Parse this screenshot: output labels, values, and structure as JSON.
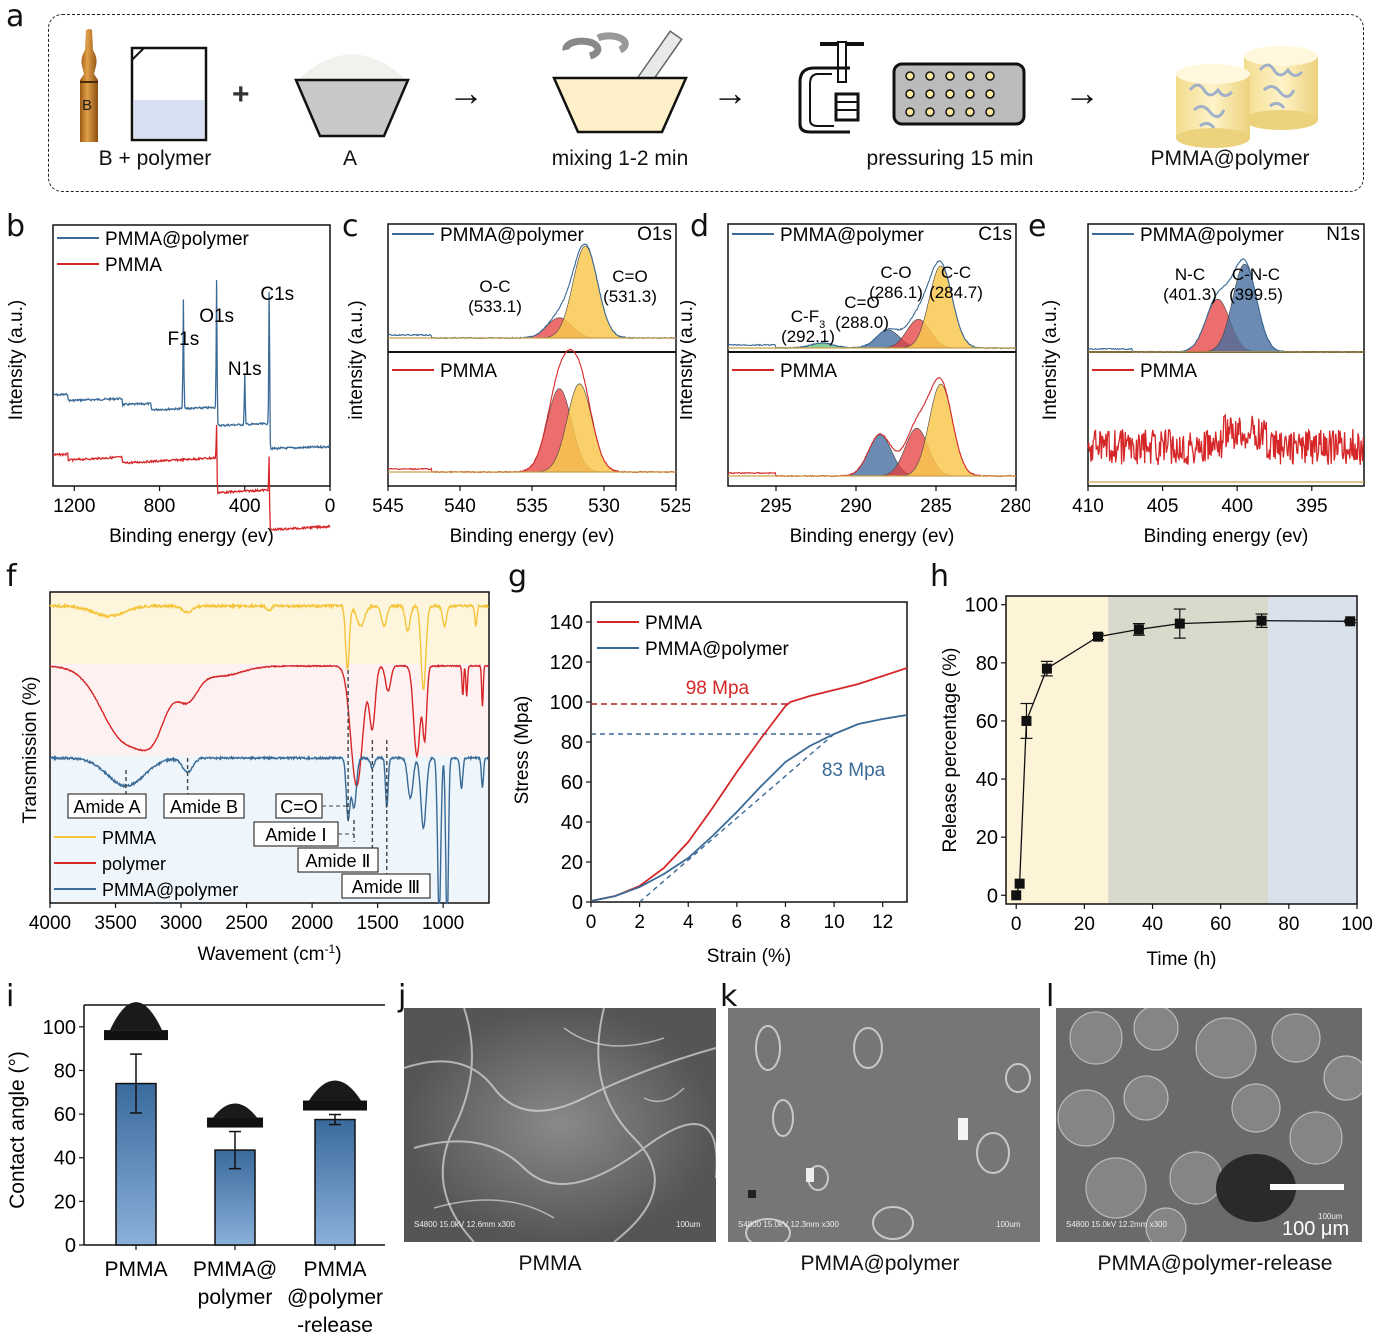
{
  "panel_labels": [
    "a",
    "b",
    "c",
    "d",
    "e",
    "f",
    "g",
    "h",
    "i",
    "j",
    "k",
    "l"
  ],
  "scheme": {
    "steps": [
      {
        "label": "B + polymer",
        "icon": "ampoule-and-beaker-icon",
        "ampoule_letter": "B"
      },
      {
        "label": "A",
        "icon": "powder-bowl-icon"
      },
      {
        "label": "mixing 1-2 min",
        "icon": "mortar-pestle-icon"
      },
      {
        "label": "pressuring 15 min",
        "icon": "clamp-and-mold-icon"
      },
      {
        "label": "PMMA@polymer",
        "icon": "cylinder-samples-icon"
      }
    ],
    "plus": "+",
    "arrow": "→"
  },
  "colors": {
    "red": "#d62728",
    "blue": "#3a6a96",
    "yellow": "#f5c43a",
    "orange": "#f39b2a",
    "green": "#6cc18a",
    "pale_yellow": "#fdf6dc",
    "pale_red": "#fdf1f1",
    "pale_blue": "#eef5fb",
    "band_yellow": "#fdf3d7",
    "band_gray": "#d9d9cc",
    "band_blue": "#d9e1ec",
    "bar_top": "#3a6a9c",
    "bar_bottom": "#8ab0da"
  },
  "chart_data": [
    {
      "id": "b",
      "type": "line",
      "title": "",
      "xlabel": "Binding energy (ev)",
      "ylabel": "Intensity (a.u.)",
      "xlim": [
        1300,
        0
      ],
      "xticks": [
        "1200",
        "800",
        "400",
        "0"
      ],
      "legend": [
        "PMMA@polymer",
        "PMMA"
      ],
      "legend_position": "top-left",
      "annotations": [
        {
          "text": "F1s",
          "x": 688
        },
        {
          "text": "O1s",
          "x": 532
        },
        {
          "text": "N1s",
          "x": 400
        },
        {
          "text": "C1s",
          "x": 285
        }
      ],
      "series": [
        {
          "name": "PMMA@polymer",
          "peaks": [
            688,
            532,
            400,
            285
          ],
          "steps": [
            1230,
            975,
            840
          ]
        },
        {
          "name": "PMMA",
          "peaks": [
            532,
            285
          ],
          "steps": [
            1230,
            975
          ]
        }
      ]
    },
    {
      "id": "c",
      "type": "area",
      "title": "O1s",
      "xlabel": "Binding energy (ev)",
      "ylabel": "intensity (a.u.)",
      "xlim": [
        545,
        525
      ],
      "xticks": [
        "545",
        "540",
        "535",
        "530",
        "525"
      ],
      "subplots": [
        {
          "legend": "PMMA@polymer",
          "components": [
            {
              "label": "O-C",
              "position": "(533.1)",
              "center": 533.1,
              "height": 0.22,
              "color": "red"
            },
            {
              "label": "C=O",
              "position": "(531.3)",
              "center": 531.3,
              "height": 1.0,
              "color": "yellow"
            }
          ]
        },
        {
          "legend": "PMMA",
          "components": [
            {
              "center": 533.1,
              "height": 0.85,
              "color": "red"
            },
            {
              "center": 531.7,
              "height": 0.9,
              "color": "yellow"
            }
          ]
        }
      ]
    },
    {
      "id": "d",
      "type": "area",
      "title": "C1s",
      "xlabel": "Binding energy (ev)",
      "ylabel": "Intensity (a.u.)",
      "xlim": [
        298,
        280
      ],
      "xticks": [
        "295",
        "290",
        "285",
        "280"
      ],
      "subplots": [
        {
          "legend": "PMMA@polymer",
          "components": [
            {
              "label": "C-F",
              "sub": "3",
              "position": "(292.1)",
              "center": 292.1,
              "height": 0.06,
              "color": "green"
            },
            {
              "label": "C=O",
              "position": "(288.0)",
              "center": 288.0,
              "height": 0.22,
              "color": "blue"
            },
            {
              "label": "C-O",
              "position": "(286.1)",
              "center": 286.1,
              "height": 0.35,
              "color": "red"
            },
            {
              "label": "C-C",
              "position": "(284.7)",
              "center": 284.7,
              "height": 1.0,
              "color": "yellow"
            }
          ]
        },
        {
          "legend": "PMMA",
          "components": [
            {
              "center": 288.5,
              "height": 0.45,
              "color": "blue"
            },
            {
              "center": 286.2,
              "height": 0.52,
              "color": "red"
            },
            {
              "center": 284.7,
              "height": 1.0,
              "color": "yellow"
            }
          ]
        }
      ]
    },
    {
      "id": "e",
      "type": "area",
      "title": "N1s",
      "xlabel": "Binding energy (ev)",
      "ylabel": "Intensity (a.u.)",
      "xlim": [
        410,
        391.5
      ],
      "xticks": [
        "410",
        "405",
        "400",
        "395"
      ],
      "subplots": [
        {
          "legend": "PMMA@polymer",
          "components": [
            {
              "label": "N-C",
              "position": "(401.3)",
              "center": 401.3,
              "height": 0.6,
              "color": "red"
            },
            {
              "label": "C-N-C",
              "position": "(399.5)",
              "center": 399.5,
              "height": 1.0,
              "color": "blue"
            }
          ]
        },
        {
          "legend": "PMMA",
          "components": [],
          "noise": true
        }
      ]
    },
    {
      "id": "f",
      "type": "line",
      "title": "",
      "xlabel": "Wavement (cm",
      "xlabel_sup": "-1",
      "xlabel_end": ")",
      "ylabel": "Transmission (%)",
      "xlim": [
        4000,
        650
      ],
      "xticks": [
        "4000",
        "3500",
        "3000",
        "2500",
        "2000",
        "1500",
        "1000"
      ],
      "legend": [
        "PMMA",
        "polymer",
        "PMMA@polymer"
      ],
      "legend_position": "bottom-left",
      "annotations": [
        {
          "text": "Amide A",
          "x": 3420
        },
        {
          "text": "Amide B",
          "x": 2950
        },
        {
          "text": "C=O",
          "x": 1725
        },
        {
          "text": "Amide Ⅰ",
          "x": 1680
        },
        {
          "text": "Amide Ⅱ",
          "x": 1540
        },
        {
          "text": "Amide Ⅲ",
          "x": 1430
        }
      ]
    },
    {
      "id": "g",
      "type": "line",
      "title": "",
      "xlabel": "Strain (%)",
      "ylabel": "Stress (Mpa)",
      "xlim": [
        0,
        13
      ],
      "ylim": [
        0,
        150
      ],
      "xticks": [
        "0",
        "2",
        "4",
        "6",
        "8",
        "10",
        "12"
      ],
      "yticks": [
        "0",
        "20",
        "40",
        "60",
        "80",
        "100",
        "120",
        "140"
      ],
      "legend_position": "top-left",
      "series": [
        {
          "name": "PMMA",
          "x": [
            0,
            1,
            2,
            3,
            4,
            5,
            6,
            7,
            8,
            8.2,
            9,
            10,
            11,
            12,
            13
          ],
          "y": [
            0.5,
            3,
            8,
            17,
            30,
            47,
            65,
            82,
            98,
            100,
            103,
            106,
            109,
            113,
            117
          ]
        },
        {
          "name": "PMMA@polymer",
          "x": [
            0,
            1,
            2,
            3,
            4,
            5,
            6,
            7,
            8,
            9,
            10,
            11,
            12,
            13
          ],
          "y": [
            0.5,
            3,
            7.5,
            14,
            22,
            33,
            45,
            58,
            70,
            78,
            84,
            89,
            91.5,
            93.5
          ]
        }
      ],
      "annotations": [
        {
          "text": "98 Mpa",
          "series": "PMMA",
          "y": 99
        },
        {
          "text": "83 Mpa",
          "series": "PMMA@polymer",
          "y": 84
        }
      ]
    },
    {
      "id": "h",
      "type": "scatter",
      "title": "",
      "xlabel": "Time (h)",
      "ylabel": "Release percentage (%)",
      "xlim": [
        -3,
        100
      ],
      "ylim": [
        -3,
        103
      ],
      "xticks": [
        "0",
        "20",
        "40",
        "60",
        "80",
        "100"
      ],
      "yticks": [
        "0",
        "20",
        "40",
        "60",
        "80",
        "100"
      ],
      "x": [
        0,
        1,
        3,
        9,
        24,
        36,
        48,
        72,
        98
      ],
      "y": [
        0,
        4,
        60,
        78,
        89,
        91.5,
        93.5,
        94.5,
        94.3
      ],
      "error": [
        0,
        0,
        6,
        2.5,
        1,
        2,
        5,
        2.3,
        0.5
      ],
      "bands": [
        [
          -3,
          27
        ],
        [
          27,
          74
        ],
        [
          74,
          100
        ]
      ]
    },
    {
      "id": "i",
      "type": "bar",
      "title": "",
      "xlabel": "",
      "ylabel": "Contact angle (°)",
      "ylim": [
        0,
        110
      ],
      "yticks": [
        "0",
        "20",
        "40",
        "60",
        "80",
        "100"
      ],
      "categories": [
        "PMMA",
        "PMMA@\npolymer",
        "PMMA\n@polymer\n-release"
      ],
      "values": [
        74,
        43.5,
        57.5
      ],
      "error": [
        13.5,
        8.5,
        2.3
      ]
    }
  ],
  "sem_images": [
    {
      "id": "j",
      "caption": "PMMA",
      "info": "S4800 15.0kV 12.6mm x300",
      "scale_text": "100um"
    },
    {
      "id": "k",
      "caption": "PMMA@polymer",
      "info": "S4800 15.0kV 12.3mm x300",
      "scale_text": "100um"
    },
    {
      "id": "l",
      "caption": "PMMA@polymer-release",
      "info": "S4800 15.0kV 12.2mm x300",
      "scale_text": "100um",
      "scale_bar": "100 μm"
    }
  ]
}
